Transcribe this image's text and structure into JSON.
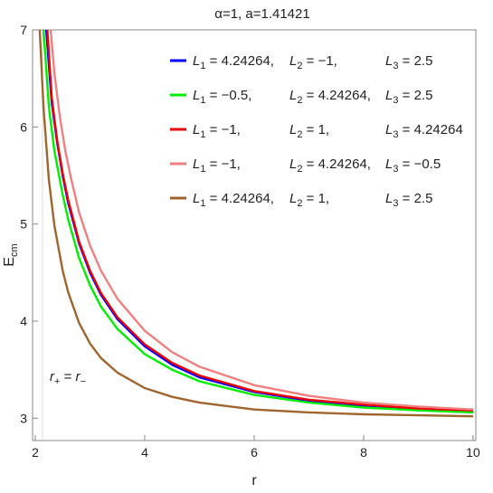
{
  "chart_data": {
    "type": "line",
    "title": "α=1,  a=1.41421",
    "xlabel": "r",
    "ylabel_main": "E",
    "ylabel_sub": "cm",
    "xlim": [
      1.95,
      10.05
    ],
    "ylim": [
      2.77,
      7.0
    ],
    "xticks": [
      "2",
      "4",
      "6",
      "8",
      "10"
    ],
    "yticks": [
      "3",
      "4",
      "5",
      "6",
      "7"
    ],
    "grid": false,
    "legend_position": "top-right",
    "annotation": {
      "r1": "r",
      "sub1": "+",
      "eq": " = ",
      "r2": "r",
      "sub2": "−"
    },
    "series": [
      {
        "color": "#0000ff",
        "legend": {
          "a": "L",
          "as": "1",
          "av": " =   4.24264,",
          "b": "L",
          "bs": "2",
          "bv": " = −1,",
          "c": "L",
          "cs": "3",
          "cv": " =   2.5"
        },
        "x": [
          2.2,
          2.3,
          2.4,
          2.5,
          2.6,
          2.8,
          3.0,
          3.2,
          3.5,
          4.0,
          4.5,
          5.0,
          6.0,
          7.0,
          8.0,
          9.0,
          10.0
        ],
        "y": [
          7.0,
          6.25,
          5.84,
          5.5,
          5.22,
          4.8,
          4.5,
          4.27,
          4.02,
          3.74,
          3.55,
          3.42,
          3.27,
          3.18,
          3.13,
          3.1,
          3.07
        ]
      },
      {
        "color": "#00ee00",
        "legend": {
          "a": "L",
          "as": "1",
          "av": " = −0.5,",
          "b": "L",
          "bs": "2",
          "bv": " =   4.24264,",
          "c": "L",
          "cs": "3",
          "cv": " =   2.5"
        },
        "x": [
          2.15,
          2.25,
          2.35,
          2.5,
          2.6,
          2.8,
          3.0,
          3.2,
          3.5,
          4.0,
          4.5,
          5.0,
          6.0,
          7.0,
          8.0,
          9.0,
          10.0
        ],
        "y": [
          7.0,
          6.2,
          5.75,
          5.3,
          5.05,
          4.65,
          4.37,
          4.15,
          3.92,
          3.66,
          3.5,
          3.38,
          3.24,
          3.16,
          3.11,
          3.08,
          3.06
        ]
      },
      {
        "color": "#ee0000",
        "legend": {
          "a": "L",
          "as": "1",
          "av": " = −1,",
          "b": "L",
          "bs": "2",
          "bv": " =   1,",
          "c": "L",
          "cs": "3",
          "cv": " =   4.24264"
        },
        "x": [
          2.22,
          2.3,
          2.4,
          2.5,
          2.6,
          2.8,
          3.0,
          3.2,
          3.5,
          4.0,
          4.5,
          5.0,
          6.0,
          7.0,
          8.0,
          9.0,
          10.0
        ],
        "y": [
          7.0,
          6.3,
          5.86,
          5.52,
          5.25,
          4.82,
          4.52,
          4.29,
          4.04,
          3.76,
          3.57,
          3.44,
          3.28,
          3.19,
          3.14,
          3.1,
          3.08
        ]
      },
      {
        "color": "#f08080",
        "legend": {
          "a": "L",
          "as": "1",
          "av": " = −1,",
          "b": "L",
          "bs": "2",
          "bv": " =   4.24264,",
          "c": "L",
          "cs": "3",
          "cv": " = −0.5"
        },
        "x": [
          2.28,
          2.35,
          2.45,
          2.55,
          2.65,
          2.8,
          3.0,
          3.2,
          3.5,
          4.0,
          4.5,
          5.0,
          6.0,
          7.0,
          8.0,
          9.0,
          10.0
        ],
        "y": [
          7.0,
          6.55,
          6.1,
          5.75,
          5.48,
          5.12,
          4.78,
          4.52,
          4.23,
          3.9,
          3.68,
          3.53,
          3.34,
          3.23,
          3.16,
          3.12,
          3.09
        ]
      },
      {
        "color": "#a0642d",
        "legend": {
          "a": "L",
          "as": "1",
          "av": " =   4.24264,",
          "b": "L",
          "bs": "2",
          "bv": " =   1,",
          "c": "L",
          "cs": "3",
          "cv": " =   2.5"
        },
        "x": [
          2.08,
          2.15,
          2.25,
          2.35,
          2.5,
          2.6,
          2.8,
          3.0,
          3.2,
          3.5,
          4.0,
          4.5,
          5.0,
          6.0,
          7.0,
          8.0,
          9.0,
          10.0
        ],
        "y": [
          7.0,
          6.2,
          5.45,
          4.98,
          4.52,
          4.3,
          3.98,
          3.77,
          3.62,
          3.47,
          3.31,
          3.22,
          3.16,
          3.09,
          3.06,
          3.04,
          3.03,
          3.02
        ]
      }
    ]
  }
}
